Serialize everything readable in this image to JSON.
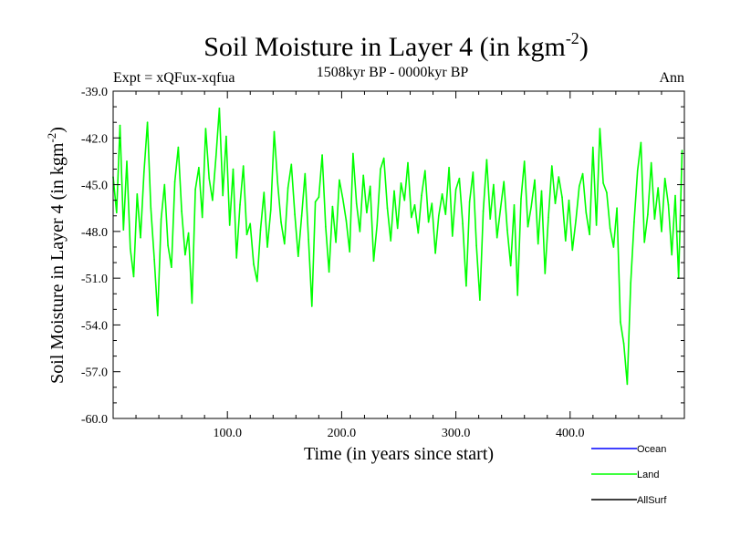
{
  "chart_data": {
    "type": "line",
    "title": "Soil Moisture in Layer 4 (in kgm",
    "title_superscript": "-2",
    "title_close": ")",
    "subtitle_left": "Expt = xQFux-xqfua",
    "subtitle_center": "1508kyr BP - 0000kyr BP",
    "subtitle_right": "Ann",
    "xlabel": "Time (in years since start)",
    "ylabel": "Soil Moisture in Layer 4 (in kgm",
    "ylabel_superscript": "-2",
    "ylabel_close": ")",
    "xlim": [
      0,
      500
    ],
    "ylim": [
      -60,
      -39
    ],
    "x_ticks": [
      100,
      200,
      300,
      400
    ],
    "x_tick_labels": [
      "100.0",
      "200.0",
      "300.0",
      "400.0"
    ],
    "y_ticks": [
      -39,
      -42,
      -45,
      -48,
      -51,
      -54,
      -57,
      -60
    ],
    "y_tick_labels": [
      "-39.0",
      "-42.0",
      "-45.0",
      "-48.0",
      "-51.0",
      "-54.0",
      "-57.0",
      "-60.0"
    ],
    "legend": [
      {
        "name": "Ocean",
        "color": "#0000ff"
      },
      {
        "name": "Land",
        "color": "#00ff00"
      },
      {
        "name": "AllSurf",
        "color": "#000000"
      }
    ],
    "series": [
      {
        "name": "Land",
        "color": "#00ff00",
        "x": [
          0,
          3,
          6,
          9,
          12,
          15,
          18,
          21,
          24,
          27,
          30,
          33,
          36,
          39,
          42,
          45,
          48,
          51,
          54,
          57,
          60,
          63,
          66,
          69,
          72,
          75,
          78,
          81,
          84,
          87,
          90,
          93,
          96,
          99,
          102,
          105,
          108,
          111,
          114,
          117,
          120,
          123,
          126,
          129,
          132,
          135,
          138,
          141,
          144,
          147,
          150,
          153,
          156,
          159,
          162,
          165,
          168,
          171,
          174,
          177,
          180,
          183,
          186,
          189,
          192,
          195,
          198,
          201,
          204,
          207,
          210,
          213,
          216,
          219,
          222,
          225,
          228,
          231,
          234,
          237,
          240,
          243,
          246,
          249,
          252,
          255,
          258,
          261,
          264,
          267,
          270,
          273,
          276,
          279,
          282,
          285,
          288,
          291,
          294,
          297,
          300,
          303,
          306,
          309,
          312,
          315,
          318,
          321,
          324,
          327,
          330,
          333,
          336,
          339,
          342,
          345,
          348,
          351,
          354,
          357,
          360,
          363,
          366,
          369,
          372,
          375,
          378,
          381,
          384,
          387,
          390,
          393,
          396,
          399,
          402,
          405,
          408,
          411,
          414,
          417,
          420,
          423,
          426,
          429,
          432,
          435,
          438,
          441,
          444,
          447,
          450,
          453,
          456,
          459,
          462,
          465,
          468,
          471,
          474,
          477,
          480,
          483,
          486,
          489,
          492,
          495,
          498
        ],
        "values": [
          -44.5,
          -46.8,
          -41.2,
          -47.9,
          -43.5,
          -49.1,
          -50.9,
          -45.6,
          -48.4,
          -44.2,
          -41.0,
          -46.5,
          -49.8,
          -53.4,
          -47.2,
          -45.0,
          -48.9,
          -50.3,
          -44.8,
          -42.6,
          -46.7,
          -49.5,
          -48.1,
          -52.6,
          -45.3,
          -43.9,
          -47.1,
          -41.4,
          -44.6,
          -46.0,
          -43.2,
          -40.1,
          -45.7,
          -41.9,
          -47.6,
          -44.0,
          -49.7,
          -46.3,
          -43.8,
          -48.2,
          -47.5,
          -50.1,
          -51.2,
          -47.9,
          -45.5,
          -49.0,
          -46.6,
          -41.6,
          -44.9,
          -47.4,
          -48.8,
          -45.2,
          -43.7,
          -46.9,
          -49.6,
          -47.0,
          -44.3,
          -48.5,
          -52.8,
          -46.1,
          -45.8,
          -43.1,
          -47.7,
          -50.6,
          -46.4,
          -48.7,
          -44.7,
          -45.9,
          -47.3,
          -49.3,
          -43.0,
          -46.2,
          -48.0,
          -44.4,
          -46.8,
          -45.1,
          -49.9,
          -47.6,
          -44.0,
          -43.3,
          -46.5,
          -48.6,
          -45.4,
          -47.8,
          -44.9,
          -46.0,
          -43.6,
          -47.1,
          -46.3,
          -48.1,
          -45.7,
          -44.1,
          -47.4,
          -46.2,
          -49.4,
          -47.0,
          -45.6,
          -46.9,
          -43.9,
          -48.3,
          -45.3,
          -44.6,
          -47.5,
          -51.5,
          -46.1,
          -44.2,
          -48.9,
          -52.4,
          -46.7,
          -43.4,
          -47.2,
          -45.0,
          -48.4,
          -46.6,
          -44.8,
          -47.9,
          -50.2,
          -46.3,
          -52.1,
          -45.9,
          -43.5,
          -47.7,
          -46.4,
          -44.7,
          -48.8,
          -45.4,
          -50.7,
          -47.1,
          -43.8,
          -46.2,
          -44.5,
          -45.8,
          -48.6,
          -46.0,
          -49.2,
          -47.3,
          -45.1,
          -44.3,
          -46.8,
          -48.2,
          -42.6,
          -47.6,
          -41.4,
          -44.9,
          -45.5,
          -47.8,
          -49.0,
          -46.5,
          -53.8,
          -55.2,
          -57.8,
          -51.3,
          -47.4,
          -44.1,
          -42.3,
          -48.7,
          -46.9,
          -43.6,
          -47.2,
          -45.2,
          -48.0,
          -44.6,
          -46.3,
          -49.5,
          -45.7,
          -51.0,
          -42.8
        ]
      }
    ]
  }
}
